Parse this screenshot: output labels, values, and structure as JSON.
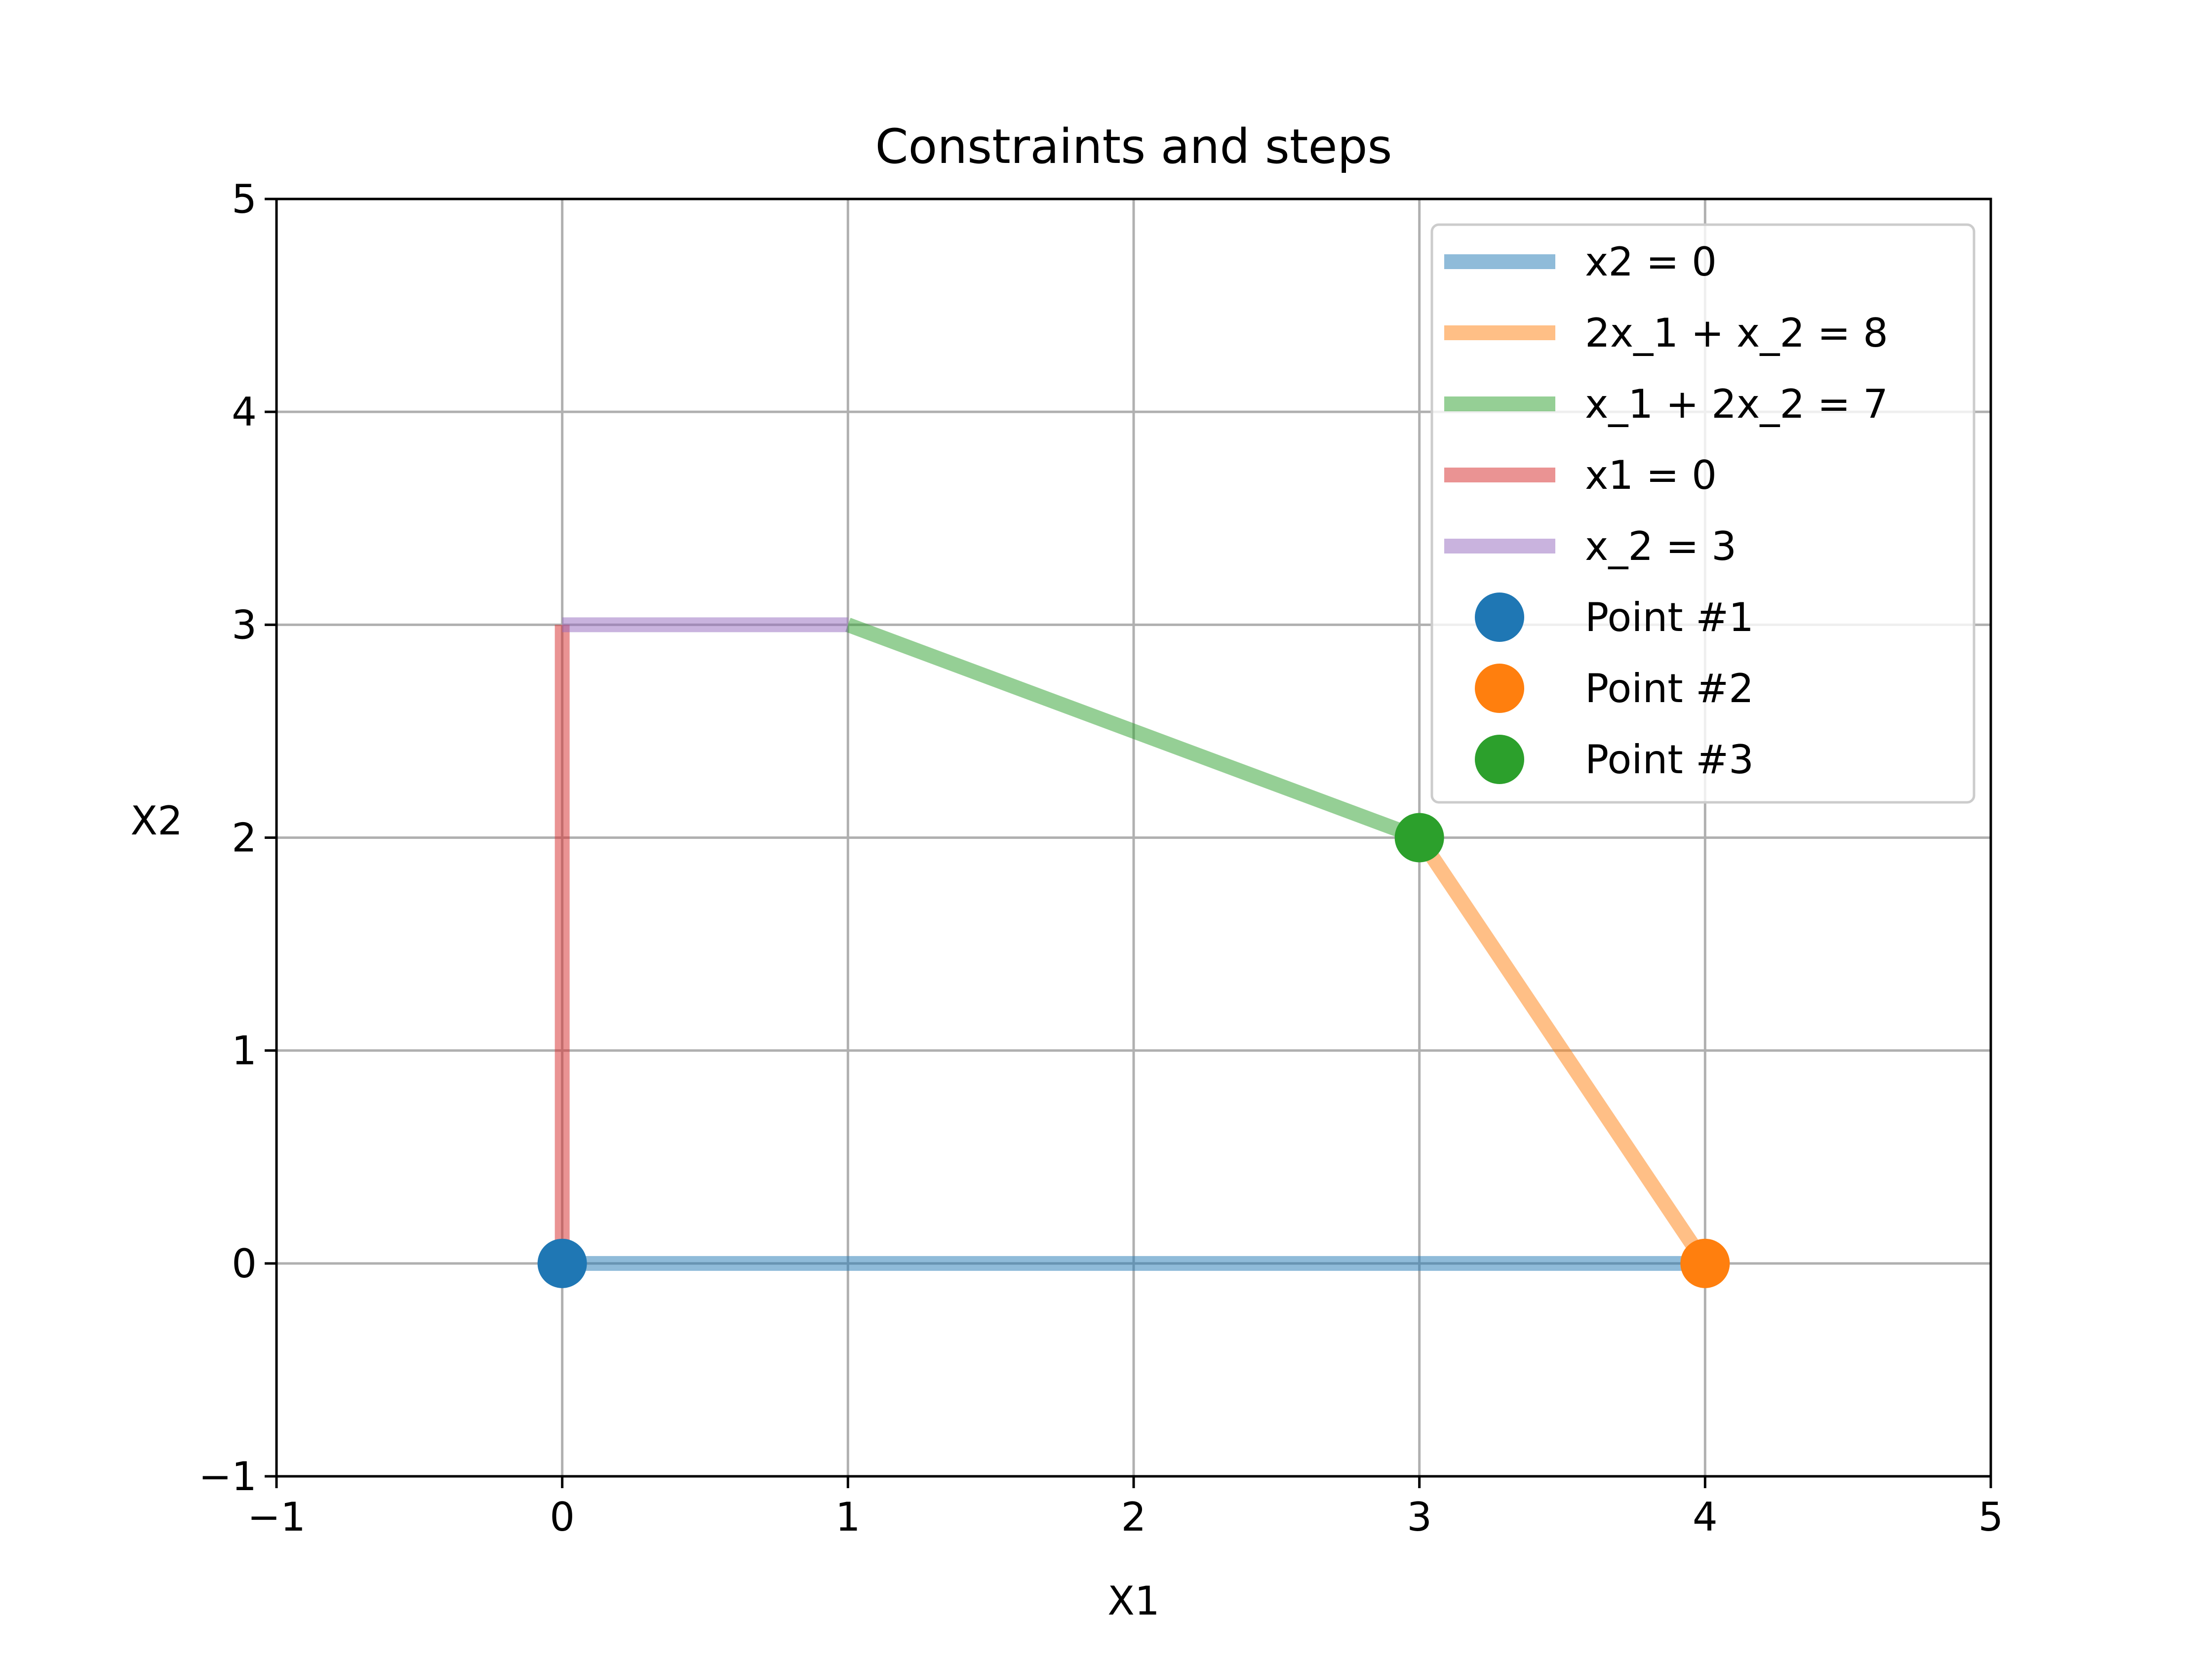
{
  "chart_data": {
    "type": "line",
    "title": "Constraints and steps",
    "xlabel": "X1",
    "ylabel": "X2",
    "xlim": [
      -1,
      5
    ],
    "ylim": [
      -1,
      5
    ],
    "xticks": [
      -1,
      0,
      1,
      2,
      3,
      4,
      5
    ],
    "yticks": [
      -1,
      0,
      1,
      2,
      3,
      4,
      5
    ],
    "xtick_labels": [
      "−1",
      "0",
      "1",
      "2",
      "3",
      "4",
      "5"
    ],
    "ytick_labels": [
      "−1",
      "0",
      "1",
      "2",
      "3",
      "4",
      "5"
    ],
    "grid": true,
    "legend_position": "upper right",
    "series": [
      {
        "name": "x2 = 0",
        "color": "#1f77b4",
        "x": [
          0,
          4
        ],
        "y": [
          0,
          0
        ]
      },
      {
        "name": "2x_1 + x_2 = 8",
        "color": "#ff7f0e",
        "x": [
          4,
          3
        ],
        "y": [
          0,
          2
        ]
      },
      {
        "name": "x_1 + 2x_2 = 7",
        "color": "#2ca02c",
        "x": [
          3,
          1
        ],
        "y": [
          2,
          3
        ]
      },
      {
        "name": "x1 = 0",
        "color": "#d62728",
        "x": [
          0,
          0
        ],
        "y": [
          0,
          3
        ]
      },
      {
        "name": "x_2 = 3",
        "color": "#9467bd",
        "x": [
          0,
          1
        ],
        "y": [
          3,
          3
        ]
      }
    ],
    "points": [
      {
        "name": "Point #1",
        "color": "#1f77b4",
        "x": 0,
        "y": 0
      },
      {
        "name": "Point #2",
        "color": "#ff7f0e",
        "x": 4,
        "y": 0
      },
      {
        "name": "Point #3",
        "color": "#2ca02c",
        "x": 3,
        "y": 2
      }
    ]
  }
}
